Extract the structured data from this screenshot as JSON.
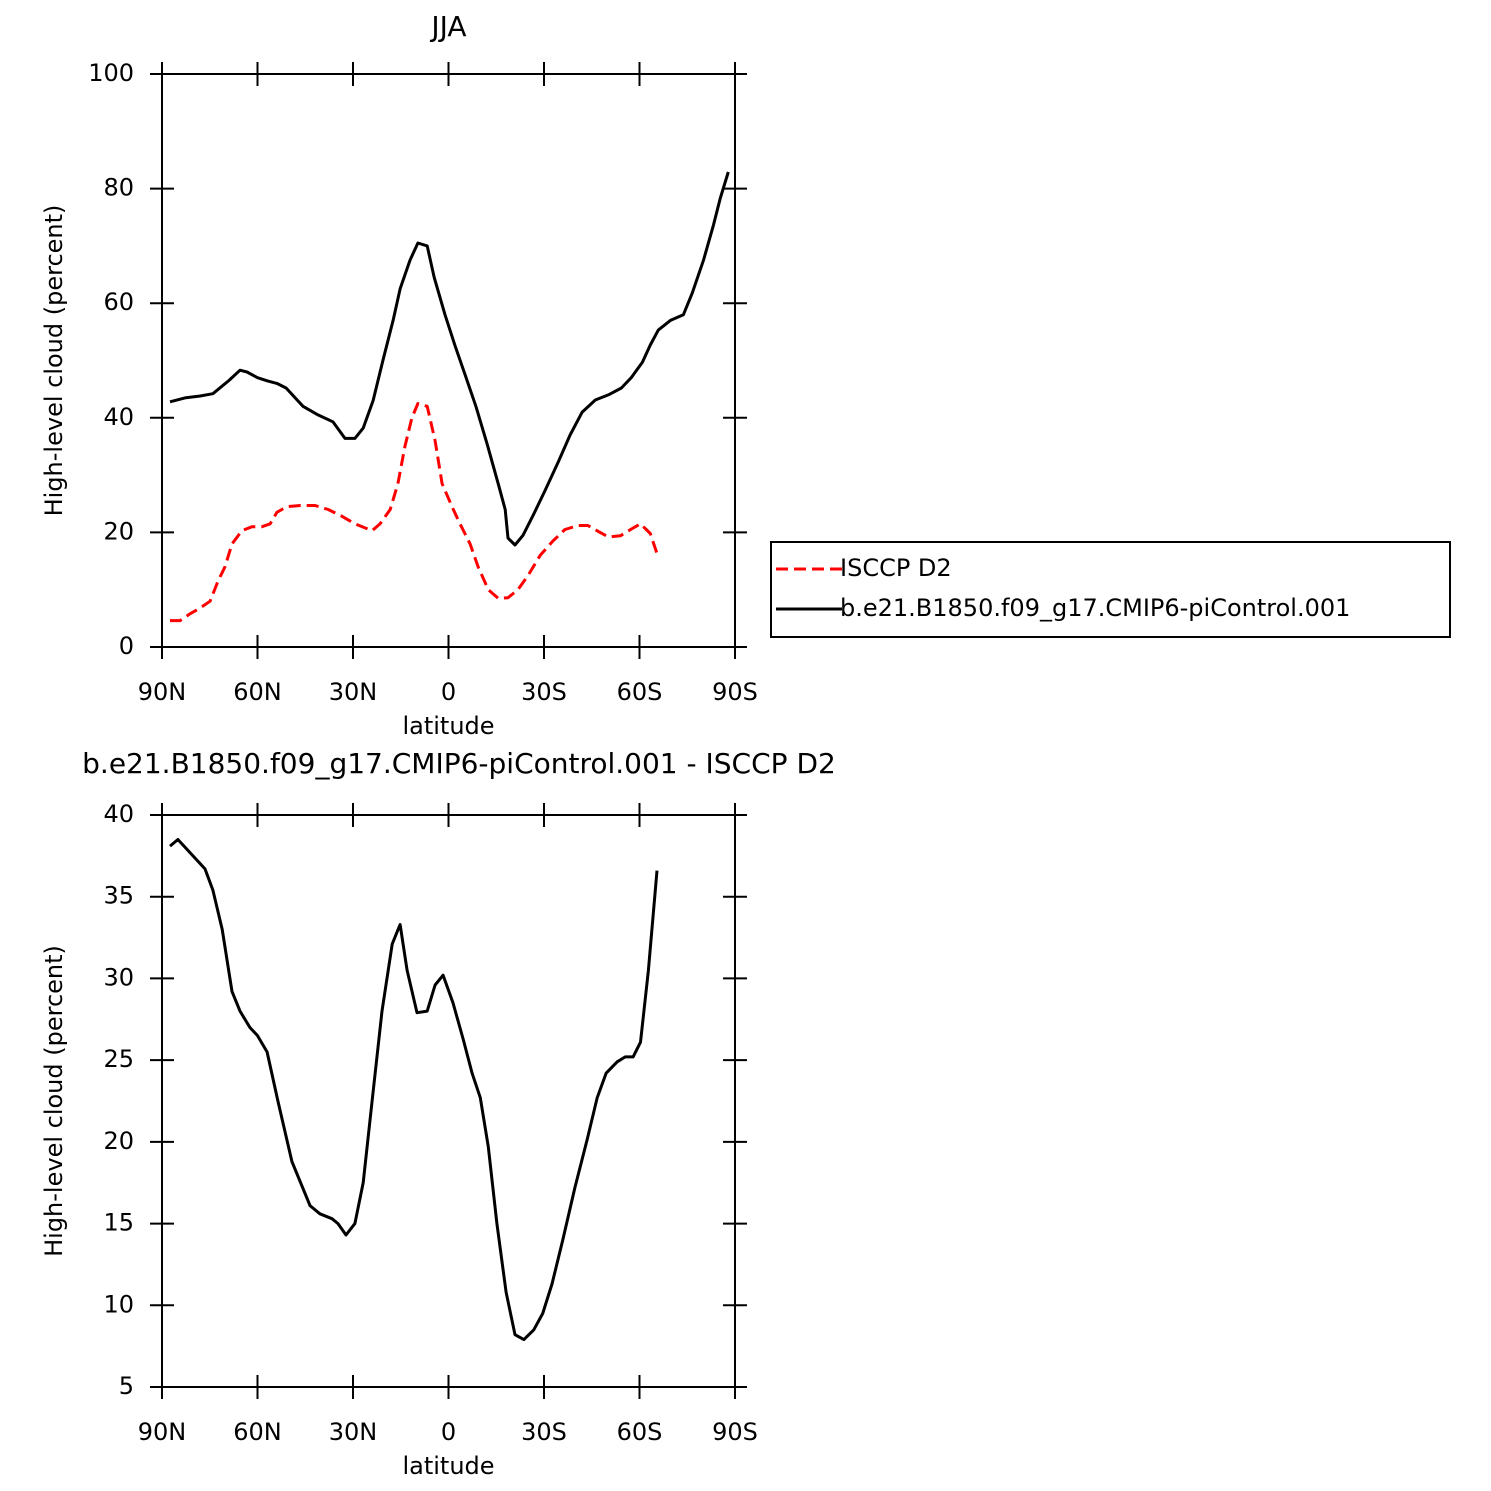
{
  "chart_data": [
    {
      "type": "line",
      "title": "JJA",
      "xlabel": "latitude",
      "ylabel": "High-level cloud (percent)",
      "xlim": [
        90,
        -90
      ],
      "xticks": [
        {
          "value": 90,
          "label": "90N"
        },
        {
          "value": 60,
          "label": "60N"
        },
        {
          "value": 30,
          "label": "30N"
        },
        0,
        {
          "value": -30,
          "label": "30S"
        },
        {
          "value": -60,
          "label": "60S"
        },
        {
          "value": -90,
          "label": "90S"
        }
      ],
      "ylim": [
        0,
        100
      ],
      "yticks": [
        0,
        20,
        40,
        60,
        80,
        100
      ],
      "legend": "right",
      "series": [
        {
          "name": "ISCCP D2",
          "color": "#ff0000",
          "dash": true,
          "x": [
            87.5,
            84.3,
            81.2,
            78,
            74.9,
            72.4,
            70.2,
            68,
            64.9,
            61.7,
            58.6,
            56,
            53.9,
            50.7,
            46.6,
            41.9,
            37.8,
            33.4,
            29.4,
            24,
            21.5,
            18.3,
            15.9,
            13.7,
            11.5,
            9.6,
            6.7,
            4.2,
            2,
            -1.1,
            -3.6,
            -6.8,
            -9.3,
            -12.5,
            -15.6,
            -18.7,
            -21.8,
            -25,
            -28.8,
            -32.8,
            -36.6,
            -40.7,
            -43.8,
            -47,
            -50.2,
            -54,
            -57.2,
            -60.3,
            -63.4,
            -65.5
          ],
          "values": [
            4.6,
            4.6,
            5.8,
            6.8,
            8,
            11.5,
            14,
            18,
            20.3,
            21,
            21,
            21.5,
            23.5,
            24.5,
            24.7,
            24.7,
            24,
            22.8,
            21.5,
            20.3,
            21.5,
            24,
            28.5,
            35,
            40,
            42.5,
            42,
            36,
            28.5,
            24.5,
            21.5,
            18,
            14,
            10,
            8.5,
            8.6,
            10,
            12.5,
            16,
            18.5,
            20.5,
            21.2,
            21.2,
            20.2,
            19.2,
            19.4,
            20.5,
            21.5,
            19.8,
            16.3
          ]
        },
        {
          "name": "b.e21.B1850.f09_g17.CMIP6-piControl.001",
          "color": "#000000",
          "dash": false,
          "x": [
            87.5,
            82.5,
            78,
            74,
            69,
            65.5,
            63.3,
            60,
            56.7,
            53.9,
            51,
            45.7,
            41,
            36.3,
            32.5,
            29.4,
            26.8,
            23.7,
            20.6,
            17.4,
            15.2,
            12.1,
            9.6,
            6.7,
            4.5,
            1.1,
            -2.1,
            -5.2,
            -8.6,
            -12.1,
            -15.6,
            -17.8,
            -18.7,
            -20.9,
            -23.4,
            -26.6,
            -30.4,
            -34.5,
            -38.2,
            -42,
            -46.1,
            -50.2,
            -54.3,
            -57.4,
            -60.9,
            -63.4,
            -65.9,
            -69.7,
            -73.8,
            -76.6,
            -80.1,
            -83.2,
            -85.4,
            -87.9
          ],
          "values": [
            42.8,
            43.5,
            43.8,
            44.2,
            46.5,
            48.3,
            48,
            47,
            46.4,
            46,
            45.2,
            42,
            40.5,
            39.3,
            36.4,
            36.4,
            38.2,
            43,
            50,
            57,
            62.5,
            67.5,
            70.5,
            70,
            64.5,
            58,
            52.5,
            47.5,
            42,
            35.5,
            28.5,
            24,
            19,
            17.8,
            19.5,
            23,
            27.4,
            32.3,
            37,
            41,
            43.1,
            44,
            45.2,
            47,
            49.7,
            52.7,
            55.3,
            57,
            58,
            61.8,
            67.5,
            73.6,
            78.4,
            82.9
          ]
        }
      ]
    },
    {
      "type": "line",
      "title": "b.e21.B1850.f09_g17.CMIP6-piControl.001 - ISCCP D2",
      "xlabel": "latitude",
      "ylabel": "High-level cloud (percent)",
      "xlim": [
        90,
        -90
      ],
      "xticks": [
        {
          "value": 90,
          "label": "90N"
        },
        {
          "value": 60,
          "label": "60N"
        },
        {
          "value": 30,
          "label": "30N"
        },
        0,
        {
          "value": -30,
          "label": "30S"
        },
        {
          "value": -60,
          "label": "60S"
        },
        {
          "value": -90,
          "label": "90S"
        }
      ],
      "ylim": [
        5,
        40
      ],
      "yticks": [
        5,
        10,
        15,
        20,
        25,
        30,
        35,
        40
      ],
      "series": [
        {
          "color": "#000000",
          "dash": false,
          "x": [
            87.5,
            85,
            81.2,
            76.5,
            74,
            71.1,
            68,
            65.5,
            62.4,
            60,
            57,
            53.6,
            49.2,
            43.5,
            40.4,
            36.6,
            34.7,
            32.2,
            29.4,
            26.8,
            24,
            20.9,
            17.7,
            15.2,
            13,
            9.9,
            6.7,
            4.2,
            1.7,
            -1.4,
            -4.6,
            -7.4,
            -10,
            -12.5,
            -15.2,
            -18.1,
            -20.9,
            -23.7,
            -26.8,
            -29.6,
            -32.5,
            -35.9,
            -39.7,
            -43.5,
            -46.7,
            -49.5,
            -53,
            -55.5,
            -58,
            -60.3,
            -62.8,
            -65.5
          ],
          "values": [
            38.1,
            38.5,
            37.7,
            36.7,
            35.4,
            33,
            29.2,
            28,
            27,
            26.5,
            25.5,
            22.5,
            18.8,
            16.1,
            15.6,
            15.3,
            15,
            14.3,
            15,
            17.5,
            22.5,
            28,
            32.1,
            33.3,
            30.5,
            27.9,
            28,
            29.6,
            30.2,
            28.5,
            26.3,
            24.2,
            22.7,
            19.7,
            15,
            10.8,
            8.2,
            7.9,
            8.5,
            9.5,
            11.3,
            14,
            17.2,
            20.1,
            22.7,
            24.2,
            24.9,
            25.2,
            25.2,
            26.1,
            30.5,
            36.6
          ]
        }
      ]
    }
  ]
}
